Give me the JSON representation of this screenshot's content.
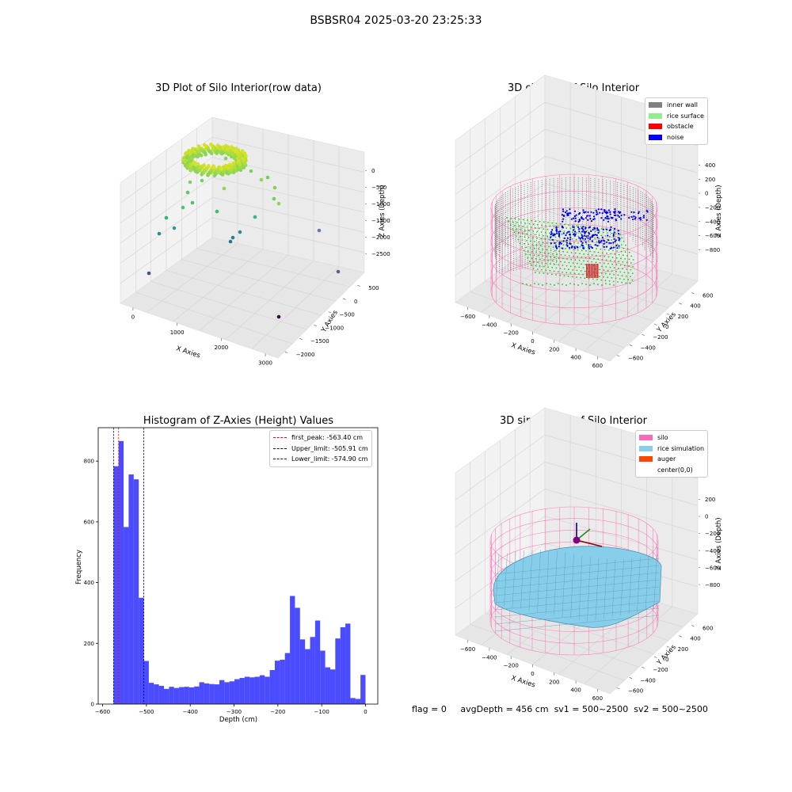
{
  "suptitle": "BSBSR04 2025-03-20 23:25:33",
  "panels": {
    "raw": {
      "title": "3D Plot of Silo Interior(row data)",
      "xlabel": "X Axies",
      "ylabel": "Y Axies",
      "zlabel": "Z Axies (Depth)",
      "xticks": [
        "0",
        "1000",
        "2000",
        "3000"
      ],
      "yticks": [
        "500",
        "0",
        "−500",
        "−1000",
        "−1500",
        "−2000"
      ],
      "zticks": [
        "0",
        "−500",
        "−1000",
        "−1500",
        "−2000",
        "−2500"
      ]
    },
    "classify": {
      "title": "3D classify of Silo Interior",
      "xlabel": "X Axies",
      "ylabel": "Y Axies",
      "zlabel": "Z Axies (Depth)",
      "xticks": [
        "−600",
        "−400",
        "−200",
        "0",
        "200",
        "400",
        "600"
      ],
      "yticks": [
        "600",
        "400",
        "200",
        "0",
        "−200",
        "−400",
        "−600"
      ],
      "zticks": [
        "400",
        "200",
        "0",
        "−200",
        "−400",
        "−600",
        "−800"
      ],
      "legend": [
        {
          "label": "inner wall",
          "color": "#808080"
        },
        {
          "label": "rice surface",
          "color": "#90ee90"
        },
        {
          "label": "obstacle",
          "color": "#ff0000"
        },
        {
          "label": "noise",
          "color": "#0000ff"
        }
      ]
    },
    "simulation": {
      "title": "3D simulation of Silo Interior",
      "xlabel": "X Axies",
      "ylabel": "Y Axies",
      "zlabel": "Z Axies (Depth)",
      "xticks": [
        "−600",
        "−400",
        "−200",
        "0",
        "200",
        "400",
        "600"
      ],
      "yticks": [
        "600",
        "400",
        "200",
        "0",
        "−200",
        "−400",
        "−600"
      ],
      "zticks": [
        "200",
        "0",
        "−200",
        "−400",
        "−600",
        "−800"
      ],
      "legend": [
        {
          "label": "silo",
          "color": "#ff69b4"
        },
        {
          "label": "rice simulation",
          "color": "#87ceeb"
        },
        {
          "label": "auger",
          "color": "#ff4500"
        },
        {
          "label": "center(0,0)",
          "color": "#ffffff"
        }
      ]
    }
  },
  "chart_data": [
    {
      "type": "bar",
      "title": "Histogram of Z-Axies (Height) Values",
      "xlabel": "Depth (cm)",
      "ylabel": "Frequency",
      "xlim": [
        -610,
        28
      ],
      "ylim": [
        0,
        910
      ],
      "xticks": [
        -600,
        -500,
        -400,
        -300,
        -200,
        -100,
        0
      ],
      "yticks": [
        0,
        200,
        400,
        600,
        800
      ],
      "bar_color": "#0000ff",
      "bins_start": -575,
      "bin_width": 11.5,
      "values": [
        783,
        866,
        583,
        756,
        740,
        350,
        142,
        70,
        65,
        60,
        50,
        57,
        53,
        56,
        57,
        55,
        58,
        72,
        68,
        66,
        65,
        79,
        72,
        75,
        82,
        86,
        90,
        88,
        90,
        95,
        90,
        112,
        143,
        146,
        168,
        356,
        317,
        213,
        181,
        221,
        275,
        176,
        121,
        114,
        216,
        253,
        265,
        20,
        17,
        96
      ],
      "lines": [
        {
          "label": "first_peak: -563.40 cm",
          "value": -563.4,
          "color": "#ff0000"
        },
        {
          "label": "Upper_limit: -505.91 cm",
          "value": -505.91,
          "color": "#00008b"
        },
        {
          "label": "Lower_limit: -574.90 cm",
          "value": -574.9,
          "color": "#0000ff"
        }
      ]
    }
  ],
  "footer": {
    "flag": "flag = 0",
    "avg_depth": "avgDepth = 456 cm",
    "sv1": "sv1 = 500~2500",
    "sv2": "sv2 = 500~2500"
  }
}
